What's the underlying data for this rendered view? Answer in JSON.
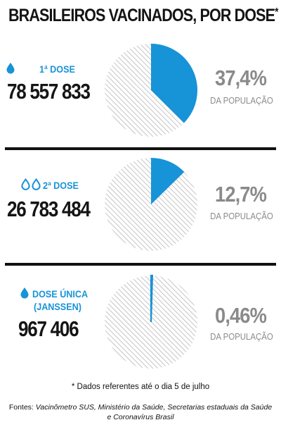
{
  "title": "BRASILEIROS VACINADOS, POR DOSE",
  "title_mark": "*",
  "colors": {
    "accent": "#1793d8",
    "hatch": "#b5b5b5",
    "text": "#141414",
    "muted": "#8a8a8a"
  },
  "chart_data": [
    {
      "type": "pie",
      "label": "1ª DOSE",
      "count": "78 557 833",
      "percent_text": "37,4%",
      "percent_value": 37.4,
      "percent_caption": "DA POPULAÇÃO"
    },
    {
      "type": "pie",
      "label": "2ª DOSE",
      "count": "26 783 484",
      "percent_text": "12,7%",
      "percent_value": 12.7,
      "percent_caption": "DA POPULAÇÃO"
    },
    {
      "type": "pie",
      "label": "DOSE ÚNICA",
      "label_line2": "(JANSSEN)",
      "count": "967 406",
      "percent_text": "0,46%",
      "percent_value": 0.46,
      "percent_caption": "DA POPULAÇÃO"
    }
  ],
  "footnote": "* Dados referentes até o dia 5 de julho",
  "sources": {
    "prefix": "Fontes:",
    "text": "Vacinômetro SUS, Ministério da Saúde, Secretarias estaduais da Saúde e Coronavírus Brasil"
  }
}
